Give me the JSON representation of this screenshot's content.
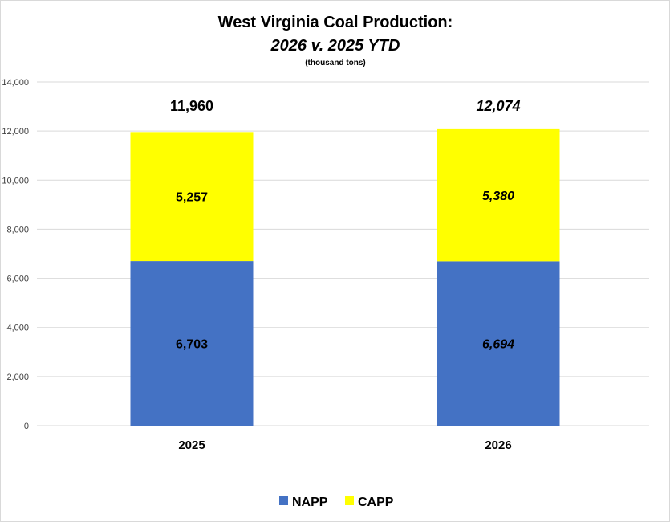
{
  "chart_data": {
    "type": "bar",
    "stacked": true,
    "title": "West Virginia Coal Production:",
    "subtitle": "2026 v. 2025 YTD",
    "units": "(thousand tons)",
    "categories": [
      "2025",
      "2026"
    ],
    "series": [
      {
        "name": "NAPP",
        "color": "#4472C4",
        "values": [
          6703,
          6694
        ],
        "labels": [
          "6,703",
          "6,694"
        ]
      },
      {
        "name": "CAPP",
        "color": "#FFFF00",
        "values": [
          5257,
          5380
        ],
        "labels": [
          "5,257",
          "5,380"
        ]
      }
    ],
    "totals": [
      11960,
      12074
    ],
    "total_labels": [
      "11,960",
      "12,074"
    ],
    "italic_categories": [
      false,
      true
    ],
    "ylim": [
      0,
      14000
    ],
    "yticks": [
      0,
      2000,
      4000,
      6000,
      8000,
      10000,
      12000,
      14000
    ],
    "ytick_labels": [
      "0",
      "2,000",
      "4,000",
      "6,000",
      "8,000",
      "10,000",
      "12,000",
      "14,000"
    ],
    "grid": true,
    "legend": "bottom",
    "xlabel": "",
    "ylabel": ""
  }
}
